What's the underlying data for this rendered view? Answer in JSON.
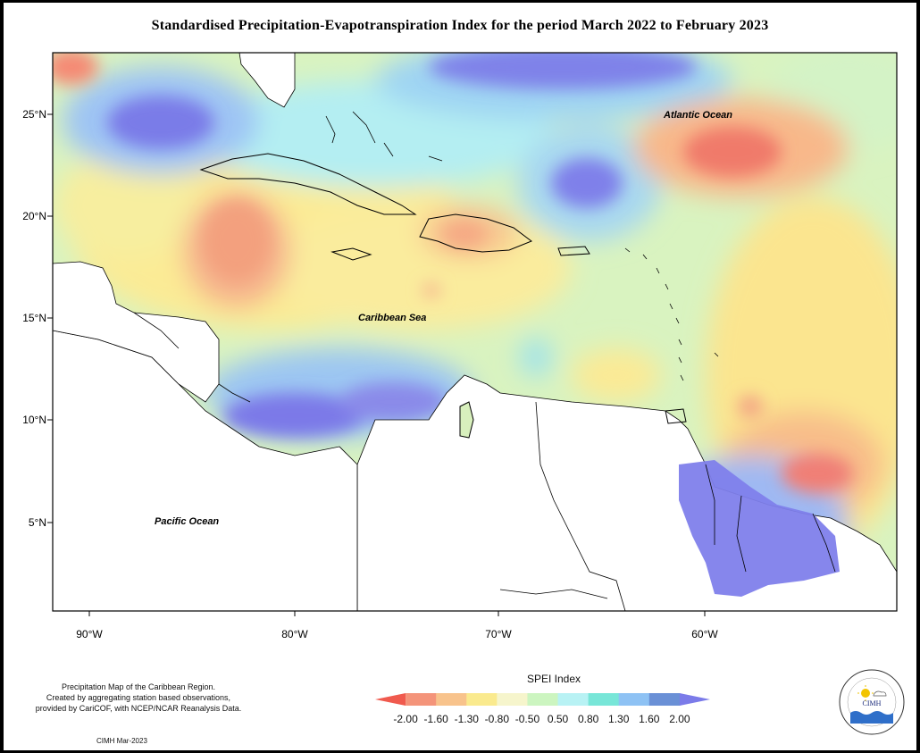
{
  "title": "Standardised Precipitation-Evapotranspiration Index for the period March 2022 to February 2023",
  "map": {
    "latitude_labels": [
      "25°N",
      "20°N",
      "15°N",
      "10°N",
      "5°N"
    ],
    "longitude_labels": [
      "90°W",
      "80°W",
      "70°W",
      "60°W"
    ],
    "places": {
      "atlantic": "Atlantic Ocean",
      "caribbean": "Caribbean Sea",
      "pacific": "Pacific Ocean"
    }
  },
  "legend": {
    "title": "SPEI Index",
    "ticks": [
      "-2.00",
      "-1.60",
      "-1.30",
      "-0.80",
      "-0.50",
      "0.50",
      "0.80",
      "1.30",
      "1.60",
      "2.00"
    ],
    "colors": [
      "#f05a4e",
      "#f4947a",
      "#f8c38c",
      "#faea8e",
      "#f6f5cc",
      "#ccf5c0",
      "#b8f2f4",
      "#78e6d8",
      "#8ec2f4",
      "#6a90d6",
      "#7b7be9"
    ]
  },
  "notes": {
    "line1": "Precipitation Map of the Caribbean Region.",
    "line2": "Created by aggregating station based observations,",
    "line3": "provided by CariCOF, with NCEP/NCAR Reanalysis Data.",
    "credit": "CIMH Mar-2023"
  },
  "logo": {
    "text": "CIMH"
  }
}
